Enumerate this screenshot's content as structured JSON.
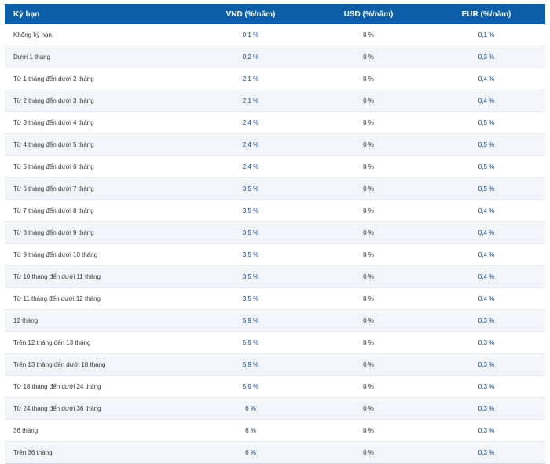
{
  "table": {
    "headers": {
      "term": "Kỳ hạn",
      "vnd": "VND (%/năm)",
      "usd": "USD (%/năm)",
      "eur": "EUR (%/năm)"
    },
    "rows": [
      {
        "term": "Không kỳ hạn",
        "vnd": "0,1 %",
        "usd": "0 %",
        "eur": "0,1 %"
      },
      {
        "term": "Dưới 1 tháng",
        "vnd": "0,2 %",
        "usd": "0 %",
        "eur": "0,3 %"
      },
      {
        "term": "Từ 1 tháng đến dưới 2 tháng",
        "vnd": "2,1 %",
        "usd": "0 %",
        "eur": "0,4 %"
      },
      {
        "term": "Từ 2 tháng đến dưới 3 tháng",
        "vnd": "2,1 %",
        "usd": "0 %",
        "eur": "0,4 %"
      },
      {
        "term": "Từ 3 tháng đến dưới 4 tháng",
        "vnd": "2,4 %",
        "usd": "0 %",
        "eur": "0,5 %"
      },
      {
        "term": "Từ 4 tháng đến dưới 5 tháng",
        "vnd": "2,4 %",
        "usd": "0 %",
        "eur": "0,5 %"
      },
      {
        "term": "Từ 5 tháng đến dưới 6 tháng",
        "vnd": "2,4 %",
        "usd": "0 %",
        "eur": "0,5 %"
      },
      {
        "term": "Từ 6 tháng đến dưới 7 tháng",
        "vnd": "3,5 %",
        "usd": "0 %",
        "eur": "0,5 %"
      },
      {
        "term": "Từ 7 tháng đến dưới 8 tháng",
        "vnd": "3,5 %",
        "usd": "0 %",
        "eur": "0,4 %"
      },
      {
        "term": "Từ 8 tháng đến dưới 9 tháng",
        "vnd": "3,5 %",
        "usd": "0 %",
        "eur": "0,4 %"
      },
      {
        "term": "Từ 9 tháng đến dưới 10 tháng",
        "vnd": "3,5 %",
        "usd": "0 %",
        "eur": "0,4 %"
      },
      {
        "term": "Từ 10 tháng đến dưới 11 tháng",
        "vnd": "3,5 %",
        "usd": "0 %",
        "eur": "0,4 %"
      },
      {
        "term": "Từ 11 tháng đến dưới 12 tháng",
        "vnd": "3,5 %",
        "usd": "0 %",
        "eur": "0,4 %"
      },
      {
        "term": "12 tháng",
        "vnd": "5,9 %",
        "usd": "0 %",
        "eur": "0,3 %"
      },
      {
        "term": "Trên 12 tháng đến 13 tháng",
        "vnd": "5,9 %",
        "usd": "0 %",
        "eur": "0,3 %"
      },
      {
        "term": "Trên 13 tháng đến dưới 18 tháng",
        "vnd": "5,9 %",
        "usd": "0 %",
        "eur": "0,3 %"
      },
      {
        "term": "Từ 18 tháng đến dưới 24 tháng",
        "vnd": "5,9 %",
        "usd": "0 %",
        "eur": "0,3 %"
      },
      {
        "term": "Từ 24 tháng đến dưới 36 tháng",
        "vnd": "6 %",
        "usd": "0 %",
        "eur": "0,3 %"
      },
      {
        "term": "36 tháng",
        "vnd": "6 %",
        "usd": "0 %",
        "eur": "0,3 %"
      },
      {
        "term": "Trên 36 tháng",
        "vnd": "6 %",
        "usd": "0 %",
        "eur": "0,3 %"
      }
    ]
  },
  "colors": {
    "header_bg": "#0b5ea8",
    "stripe_bg": "#f2f5f9",
    "value_text": "#0f3f73"
  }
}
